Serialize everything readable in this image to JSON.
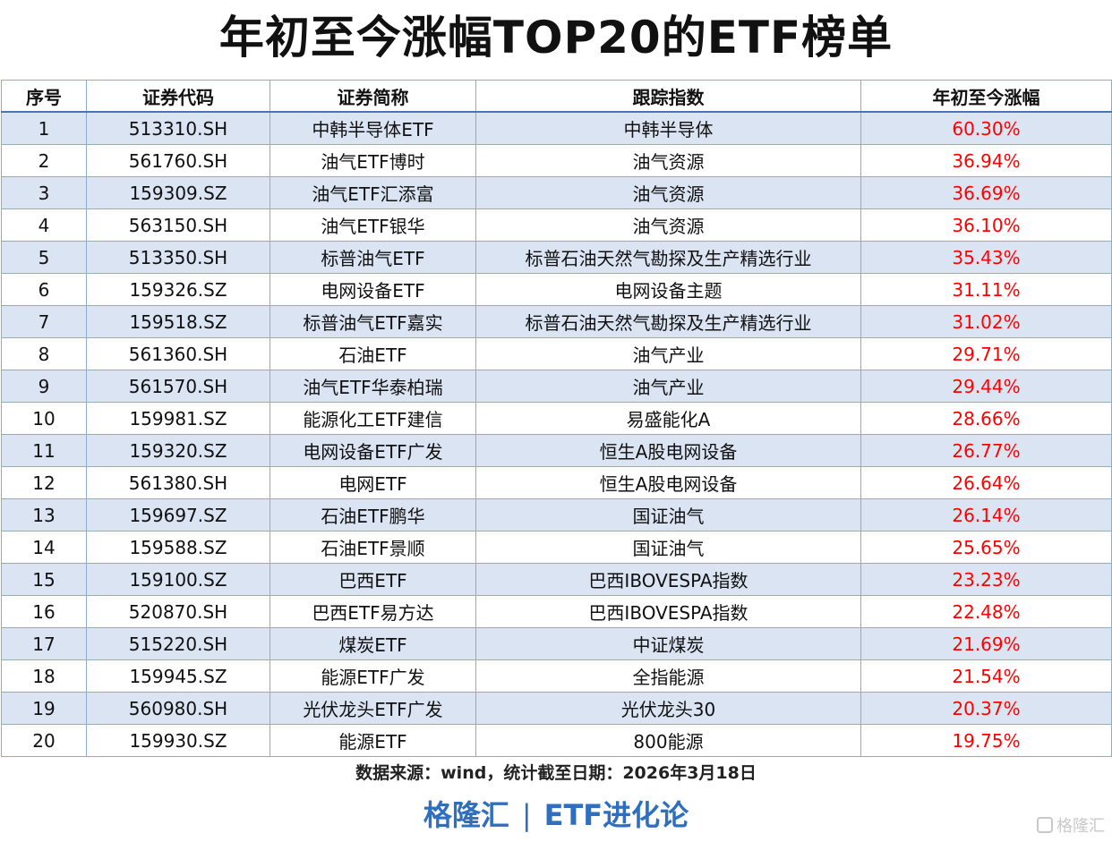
{
  "title": "年初至今涨幅TOP20的ETF榜单",
  "table": {
    "headers": [
      "序号",
      "证券代码",
      "证券简称",
      "跟踪指数",
      "年初至今涨幅"
    ],
    "rows": [
      [
        "1",
        "513310.SH",
        "中韩半导体ETF",
        "中韩半导体",
        "60.30%"
      ],
      [
        "2",
        "561760.SH",
        "油气ETF博时",
        "油气资源",
        "36.94%"
      ],
      [
        "3",
        "159309.SZ",
        "油气ETF汇添富",
        "油气资源",
        "36.69%"
      ],
      [
        "4",
        "563150.SH",
        "油气ETF银华",
        "油气资源",
        "36.10%"
      ],
      [
        "5",
        "513350.SH",
        "标普油气ETF",
        "标普石油天然气勘探及生产精选行业",
        "35.43%"
      ],
      [
        "6",
        "159326.SZ",
        "电网设备ETF",
        "电网设备主题",
        "31.11%"
      ],
      [
        "7",
        "159518.SZ",
        "标普油气ETF嘉实",
        "标普石油天然气勘探及生产精选行业",
        "31.02%"
      ],
      [
        "8",
        "561360.SH",
        "石油ETF",
        "油气产业",
        "29.71%"
      ],
      [
        "9",
        "561570.SH",
        "油气ETF华泰柏瑞",
        "油气产业",
        "29.44%"
      ],
      [
        "10",
        "159981.SZ",
        "能源化工ETF建信",
        "易盛能化A",
        "28.66%"
      ],
      [
        "11",
        "159320.SZ",
        "电网设备ETF广发",
        "恒生A股电网设备",
        "26.77%"
      ],
      [
        "12",
        "561380.SH",
        "电网ETF",
        "恒生A股电网设备",
        "26.64%"
      ],
      [
        "13",
        "159697.SZ",
        "石油ETF鹏华",
        "国证油气",
        "26.14%"
      ],
      [
        "14",
        "159588.SZ",
        "石油ETF景顺",
        "国证油气",
        "25.65%"
      ],
      [
        "15",
        "159100.SZ",
        "巴西ETF",
        "巴西IBOVESPA指数",
        "23.23%"
      ],
      [
        "16",
        "520870.SH",
        "巴西ETF易方达",
        "巴西IBOVESPA指数",
        "22.48%"
      ],
      [
        "17",
        "515220.SH",
        "煤炭ETF",
        "中证煤炭",
        "21.69%"
      ],
      [
        "18",
        "159945.SZ",
        "能源ETF广发",
        "全指能源",
        "21.54%"
      ],
      [
        "19",
        "560980.SH",
        "光伏龙头ETF广发",
        "光伏龙头30",
        "20.37%"
      ],
      [
        "20",
        "159930.SZ",
        "能源ETF",
        "800能源",
        "19.75%"
      ]
    ]
  },
  "source": "数据来源：wind，统计截至日期：2026年3月18日",
  "footer": {
    "brand": "格隆汇",
    "separator": "|",
    "column": "ETF进化论"
  },
  "watermark": {
    "icon": "gelonghui-logo-icon",
    "text": "格隆汇"
  },
  "colors": {
    "gain": "#ff0000",
    "stripe": "#dbe4f3",
    "border": "#8da9d6",
    "footer": "#2f6fc0"
  }
}
